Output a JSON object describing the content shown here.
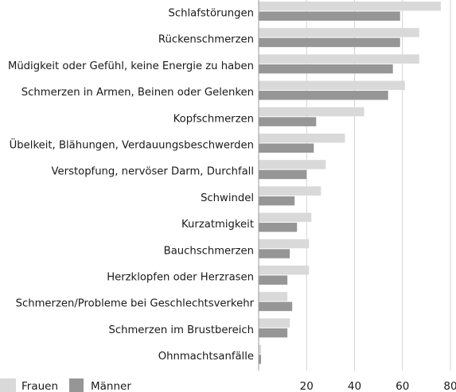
{
  "chart_data": {
    "type": "bar",
    "orientation": "horizontal",
    "categories": [
      "Schlafstörungen",
      "Rückenschmerzen",
      "Müdigkeit oder Gefühl, keine Energie zu haben",
      "Schmerzen in Armen, Beinen oder Gelenken",
      "Kopfschmerzen",
      "Übelkeit, Blähungen, Verdauungsbeschwerden",
      "Verstopfung, nervöser Darm, Durchfall",
      "Schwindel",
      "Kurzatmigkeit",
      "Bauchschmerzen",
      "Herzklopfen oder Herzrasen",
      "Schmerzen/Probleme bei Geschlechtsverkehr",
      "Schmerzen im Brustbereich",
      "Ohnmachtsanfälle"
    ],
    "series": [
      {
        "name": "Frauen",
        "color": "#d9d9d9",
        "values": [
          76,
          67,
          67,
          61,
          44,
          36,
          28,
          26,
          22,
          21,
          21,
          12,
          13,
          1
        ]
      },
      {
        "name": "Männer",
        "color": "#969696",
        "values": [
          59,
          59,
          56,
          54,
          24,
          23,
          20,
          15,
          16,
          13,
          12,
          14,
          12,
          1
        ]
      }
    ],
    "xticks": [
      "20",
      "40",
      "60",
      "80"
    ],
    "xlim": [
      0,
      80
    ],
    "grid": true,
    "legend_position": "bottom-left"
  }
}
